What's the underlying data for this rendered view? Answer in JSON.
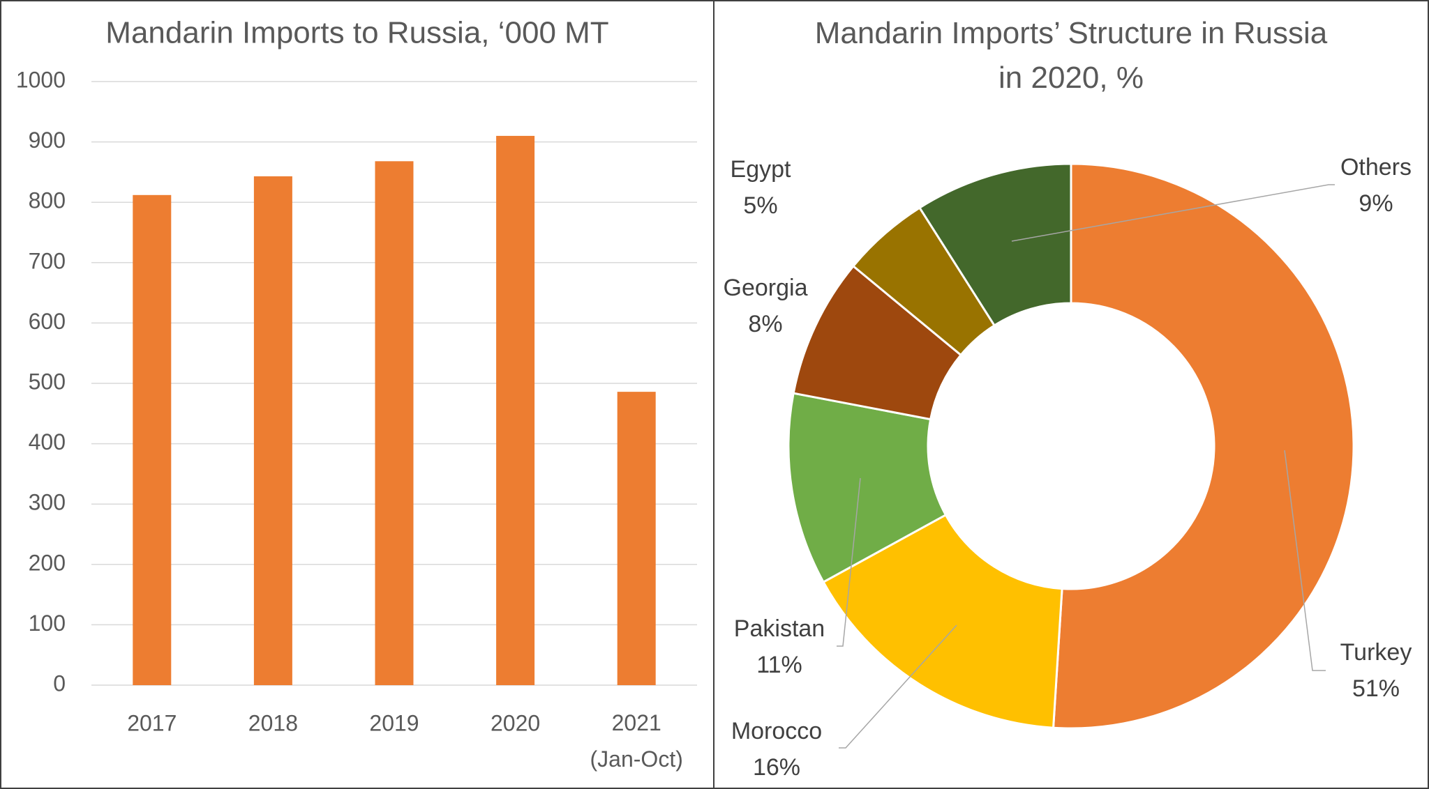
{
  "chart_data": [
    {
      "type": "bar",
      "title": "Mandarin Imports to Russia, ‘000 MT",
      "categories": [
        "2017",
        "2018",
        "2019",
        "2020",
        "2021\n(Jan-Oct)"
      ],
      "values": [
        812,
        843,
        868,
        910,
        486
      ],
      "color": "#ed7d31",
      "ylim": [
        0,
        1000
      ],
      "yticks": [
        0,
        100,
        200,
        300,
        400,
        500,
        600,
        700,
        800,
        900,
        1000
      ],
      "grid": true
    },
    {
      "type": "donut",
      "title": "Mandarin Imports’ Structure in Russia\nin 2020, %",
      "categories": [
        "Turkey",
        "Morocco",
        "Pakistan",
        "Georgia",
        "Egypt",
        "Others"
      ],
      "values": [
        51,
        16,
        11,
        8,
        5,
        9
      ],
      "value_labels": [
        "51%",
        "16%",
        "11%",
        "8%",
        "5%",
        "9%"
      ],
      "colors": [
        "#ed7d31",
        "#ffc000",
        "#70ad47",
        "#9e480e",
        "#997300",
        "#43682b"
      ]
    }
  ]
}
